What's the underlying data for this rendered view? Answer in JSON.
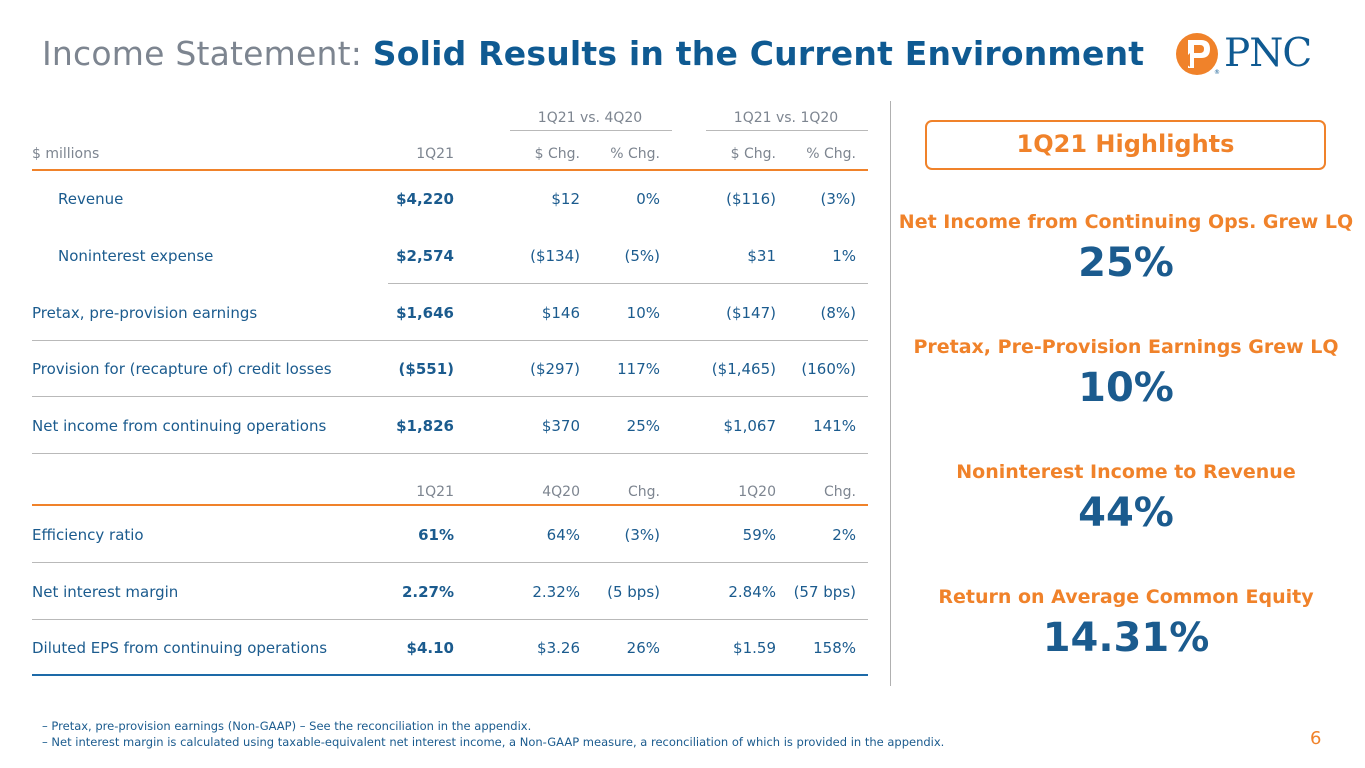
{
  "title": {
    "light": "Income Statement: ",
    "bold": "Solid Results in the Current Environment"
  },
  "logo": {
    "name": "PNC",
    "reg": "®"
  },
  "table": {
    "group_headers": [
      "1Q21 vs. 4Q20",
      "1Q21 vs. 1Q20"
    ],
    "headers": [
      "$ millions",
      "1Q21",
      "$ Chg.",
      "% Chg.",
      "$ Chg.",
      "% Chg."
    ],
    "rows": [
      [
        "Revenue",
        "$4,220",
        "$12",
        "0%",
        "($116)",
        "(3%)"
      ],
      [
        "Noninterest expense",
        "$2,574",
        "($134)",
        "(5%)",
        "$31",
        "1%"
      ],
      [
        "Pretax, pre-provision earnings",
        "$1,646",
        "$146",
        "10%",
        "($147)",
        "(8%)"
      ],
      [
        "Provision for (recapture of) credit losses",
        "($551)",
        "($297)",
        "117%",
        "($1,465)",
        "(160%)"
      ],
      [
        "Net income from continuing operations",
        "$1,826",
        "$370",
        "25%",
        "$1,067",
        "141%"
      ]
    ],
    "headers2": [
      "1Q21",
      "4Q20",
      "Chg.",
      "1Q20",
      "Chg."
    ],
    "rows2": [
      [
        "Efficiency ratio",
        "61%",
        "64%",
        "(3%)",
        "59%",
        "2%"
      ],
      [
        "Net interest margin",
        "2.27%",
        "2.32%",
        "(5 bps)",
        "2.84%",
        "(57 bps)"
      ],
      [
        "Diluted EPS from continuing operations",
        "$4.10",
        "$3.26",
        "26%",
        "$1.59",
        "158%"
      ]
    ]
  },
  "highlights": {
    "title": "1Q21 Highlights",
    "items": [
      {
        "label": "Net Income from Continuing Ops. Grew LQ",
        "value": "25%"
      },
      {
        "label": "Pretax, Pre-Provision Earnings Grew LQ",
        "value": "10%"
      },
      {
        "label": "Noninterest Income to Revenue",
        "value": "44%"
      },
      {
        "label": "Return on Average Common Equity",
        "value": "14.31%"
      }
    ]
  },
  "footnotes": [
    "–   Pretax, pre-provision earnings (Non-GAAP) – See the reconciliation in the appendix.",
    "–   Net interest margin is calculated using taxable-equivalent net interest income, a Non-GAAP measure, a reconciliation of which is provided in the appendix."
  ],
  "page_number": "6",
  "colors": {
    "orange": "#f0822a",
    "blue": "#1b5b8e",
    "gray": "#7d8590"
  }
}
